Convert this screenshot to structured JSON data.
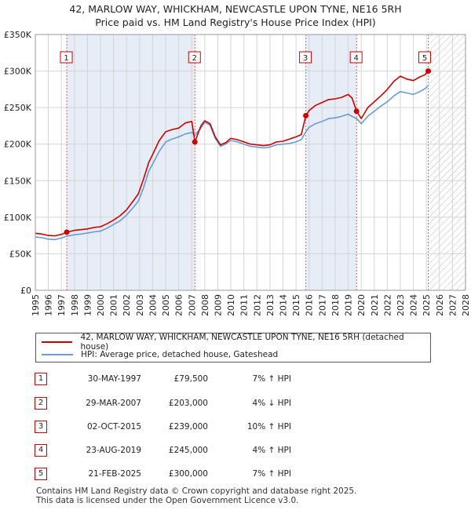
{
  "chart_data": {
    "type": "line",
    "title": "42, MARLOW WAY, WHICKHAM, NEWCASTLE UPON TYNE, NE16 5RH",
    "subtitle": "Price paid vs. HM Land Registry's House Price Index (HPI)",
    "xlim": [
      1995,
      2028
    ],
    "ylim": [
      0,
      350000
    ],
    "y_ticks": [
      {
        "value": 0,
        "label": "£0"
      },
      {
        "value": 50000,
        "label": "£50K"
      },
      {
        "value": 100000,
        "label": "£100K"
      },
      {
        "value": 150000,
        "label": "£150K"
      },
      {
        "value": 200000,
        "label": "£200K"
      },
      {
        "value": 250000,
        "label": "£250K"
      },
      {
        "value": 300000,
        "label": "£300K"
      },
      {
        "value": 350000,
        "label": "£350K"
      }
    ],
    "x_ticks": [
      "1995",
      "1996",
      "1997",
      "1998",
      "1999",
      "2000",
      "2001",
      "2002",
      "2003",
      "2004",
      "2005",
      "2006",
      "2007",
      "2008",
      "2009",
      "2010",
      "2011",
      "2012",
      "2013",
      "2014",
      "2015",
      "2016",
      "2017",
      "2018",
      "2019",
      "2020",
      "2021",
      "2022",
      "2023",
      "2024",
      "2025",
      "2026",
      "2027",
      "2028"
    ],
    "grid": true,
    "forecast_from": 2025.15,
    "series": [
      {
        "name": "42, MARLOW WAY, WHICKHAM, NEWCASTLE UPON TYNE, NE16 5RH (detached house)",
        "color": "#cc0000",
        "points": [
          [
            1995.0,
            78000
          ],
          [
            1995.5,
            77000
          ],
          [
            1996.0,
            75000
          ],
          [
            1996.5,
            74500
          ],
          [
            1997.0,
            76500
          ],
          [
            1997.41,
            79500
          ],
          [
            1998.0,
            82000
          ],
          [
            1998.5,
            83000
          ],
          [
            1999.0,
            84000
          ],
          [
            1999.5,
            86000
          ],
          [
            2000.0,
            87000
          ],
          [
            2000.5,
            91000
          ],
          [
            2001.0,
            96000
          ],
          [
            2001.5,
            102000
          ],
          [
            2002.0,
            110000
          ],
          [
            2002.5,
            122000
          ],
          [
            2002.9,
            132000
          ],
          [
            2003.3,
            152000
          ],
          [
            2003.7,
            175000
          ],
          [
            2004.0,
            186000
          ],
          [
            2004.5,
            205000
          ],
          [
            2005.0,
            217000
          ],
          [
            2005.5,
            220000
          ],
          [
            2006.0,
            222000
          ],
          [
            2006.5,
            229000
          ],
          [
            2007.0,
            231000
          ],
          [
            2007.24,
            203000
          ],
          [
            2007.7,
            225000
          ],
          [
            2008.0,
            232000
          ],
          [
            2008.4,
            228000
          ],
          [
            2008.8,
            210000
          ],
          [
            2009.2,
            199000
          ],
          [
            2009.6,
            202000
          ],
          [
            2010.0,
            208000
          ],
          [
            2010.5,
            206000
          ],
          [
            2011.0,
            203000
          ],
          [
            2011.5,
            200000
          ],
          [
            2012.0,
            199000
          ],
          [
            2012.5,
            198000
          ],
          [
            2013.0,
            199000
          ],
          [
            2013.5,
            203000
          ],
          [
            2014.0,
            204000
          ],
          [
            2014.5,
            207000
          ],
          [
            2015.0,
            210000
          ],
          [
            2015.4,
            213000
          ],
          [
            2015.75,
            239000
          ],
          [
            2016.0,
            246000
          ],
          [
            2016.5,
            253000
          ],
          [
            2017.0,
            257000
          ],
          [
            2017.5,
            261000
          ],
          [
            2018.0,
            262000
          ],
          [
            2018.5,
            264000
          ],
          [
            2019.0,
            268000
          ],
          [
            2019.3,
            263000
          ],
          [
            2019.64,
            245000
          ],
          [
            2020.0,
            235000
          ],
          [
            2020.5,
            250000
          ],
          [
            2021.0,
            258000
          ],
          [
            2021.5,
            266000
          ],
          [
            2022.0,
            275000
          ],
          [
            2022.5,
            286000
          ],
          [
            2023.0,
            293000
          ],
          [
            2023.5,
            289000
          ],
          [
            2024.0,
            287000
          ],
          [
            2024.5,
            292000
          ],
          [
            2024.9,
            295000
          ],
          [
            2025.14,
            300000
          ]
        ]
      },
      {
        "name": "HPI: Average price, detached house, Gateshead",
        "color": "#6a9bd4",
        "points": [
          [
            1995.0,
            73000
          ],
          [
            1995.5,
            72000
          ],
          [
            1996.0,
            70000
          ],
          [
            1996.5,
            69500
          ],
          [
            1997.0,
            71500
          ],
          [
            1997.41,
            74000
          ],
          [
            1998.0,
            76000
          ],
          [
            1998.5,
            77000
          ],
          [
            1999.0,
            78500
          ],
          [
            1999.5,
            80000
          ],
          [
            2000.0,
            81000
          ],
          [
            2000.5,
            85000
          ],
          [
            2001.0,
            90000
          ],
          [
            2001.5,
            95000
          ],
          [
            2002.0,
            103000
          ],
          [
            2002.5,
            113000
          ],
          [
            2002.9,
            122000
          ],
          [
            2003.3,
            140000
          ],
          [
            2003.7,
            163000
          ],
          [
            2004.0,
            173000
          ],
          [
            2004.5,
            190000
          ],
          [
            2005.0,
            203000
          ],
          [
            2005.5,
            207000
          ],
          [
            2006.0,
            210000
          ],
          [
            2006.5,
            214000
          ],
          [
            2007.0,
            216000
          ],
          [
            2007.24,
            212000
          ],
          [
            2007.7,
            222000
          ],
          [
            2008.0,
            230000
          ],
          [
            2008.4,
            226000
          ],
          [
            2008.8,
            208000
          ],
          [
            2009.2,
            197000
          ],
          [
            2009.6,
            200000
          ],
          [
            2010.0,
            205000
          ],
          [
            2010.5,
            203000
          ],
          [
            2011.0,
            200000
          ],
          [
            2011.5,
            197000
          ],
          [
            2012.0,
            196000
          ],
          [
            2012.5,
            195000
          ],
          [
            2013.0,
            196000
          ],
          [
            2013.5,
            199000
          ],
          [
            2014.0,
            200000
          ],
          [
            2014.5,
            201000
          ],
          [
            2015.0,
            203000
          ],
          [
            2015.4,
            206000
          ],
          [
            2015.75,
            217000
          ],
          [
            2016.0,
            223000
          ],
          [
            2016.5,
            228000
          ],
          [
            2017.0,
            231000
          ],
          [
            2017.5,
            235000
          ],
          [
            2018.0,
            236000
          ],
          [
            2018.5,
            238000
          ],
          [
            2019.0,
            241000
          ],
          [
            2019.3,
            238000
          ],
          [
            2019.64,
            235000
          ],
          [
            2020.0,
            228000
          ],
          [
            2020.5,
            238000
          ],
          [
            2021.0,
            245000
          ],
          [
            2021.5,
            252000
          ],
          [
            2022.0,
            258000
          ],
          [
            2022.5,
            266000
          ],
          [
            2023.0,
            272000
          ],
          [
            2023.5,
            270000
          ],
          [
            2024.0,
            268000
          ],
          [
            2024.5,
            272000
          ],
          [
            2024.9,
            276000
          ],
          [
            2025.14,
            280000
          ]
        ]
      }
    ],
    "sales": [
      {
        "n": "1",
        "x": 1997.41,
        "price": 79500
      },
      {
        "n": "2",
        "x": 2007.24,
        "price": 203000
      },
      {
        "n": "3",
        "x": 2015.75,
        "price": 239000
      },
      {
        "n": "4",
        "x": 2019.64,
        "price": 245000
      },
      {
        "n": "5",
        "x": 2025.14,
        "price": 300000
      }
    ]
  },
  "legend": {
    "property": "42, MARLOW WAY, WHICKHAM, NEWCASTLE UPON TYNE, NE16 5RH (detached house)",
    "hpi": "HPI: Average price, detached house, Gateshead"
  },
  "sales_table": [
    {
      "n": "1",
      "date": "30-MAY-1997",
      "price": "£79,500",
      "hpi": "7% ↑ HPI"
    },
    {
      "n": "2",
      "date": "29-MAR-2007",
      "price": "£203,000",
      "hpi": "4% ↓ HPI"
    },
    {
      "n": "3",
      "date": "02-OCT-2015",
      "price": "£239,000",
      "hpi": "10% ↑ HPI"
    },
    {
      "n": "4",
      "date": "23-AUG-2019",
      "price": "£245,000",
      "hpi": "4% ↑ HPI"
    },
    {
      "n": "5",
      "date": "21-FEB-2025",
      "price": "£300,000",
      "hpi": "7% ↑ HPI"
    }
  ],
  "footer": {
    "line1": "Contains HM Land Registry data © Crown copyright and database right 2025.",
    "line2": "This data is licensed under the Open Government Licence v3.0."
  }
}
